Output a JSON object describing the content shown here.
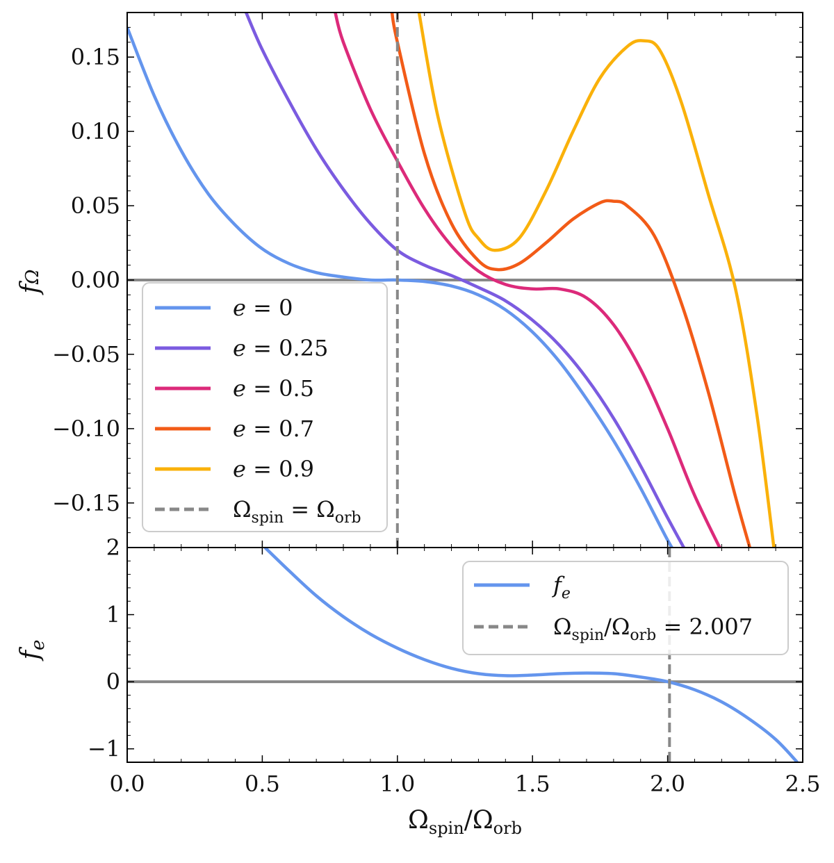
{
  "chart_data": [
    {
      "type": "line",
      "panel": "top",
      "ylabel": "f_Ω",
      "xlim": [
        0,
        2.5
      ],
      "ylim": [
        -0.18,
        0.18
      ],
      "yticks": [
        -0.15,
        -0.1,
        -0.05,
        0.0,
        0.05,
        0.1,
        0.15
      ],
      "ytick_labels": [
        "−0.15",
        "−0.10",
        "−0.05",
        "0.00",
        "0.05",
        "0.10",
        "0.15"
      ],
      "hline": 0,
      "vline": {
        "x": 1.0,
        "label": "Ω_spin = Ω_orb",
        "label_main": "Ω",
        "label_sub": "spin",
        "label_eq": " = Ω",
        "label_sub2": "orb",
        "color": "#888888"
      },
      "legend_position": "lower-left",
      "series": [
        {
          "name": "e = 0",
          "label": "e = 0",
          "label_var": "e",
          "label_val": " = 0",
          "color": "#6495ED",
          "x": [
            0,
            0.1,
            0.2,
            0.3,
            0.4,
            0.5,
            0.6,
            0.7,
            0.8,
            0.9,
            1.0,
            1.1,
            1.2,
            1.3,
            1.4,
            1.5,
            1.6,
            1.7,
            1.8,
            1.9,
            2.0,
            2.05
          ],
          "y": [
            0.17,
            0.124,
            0.087,
            0.058,
            0.037,
            0.021,
            0.011,
            0.005,
            0.002,
            0.0,
            0.0,
            -0.001,
            -0.004,
            -0.01,
            -0.02,
            -0.035,
            -0.055,
            -0.08,
            -0.108,
            -0.14,
            -0.175,
            -0.19
          ]
        },
        {
          "name": "e = 0.25",
          "label": "e = 0.25",
          "label_var": "e",
          "label_val": " = 0.25",
          "color": "#7B5BE0",
          "x": [
            0.44,
            0.5,
            0.6,
            0.7,
            0.8,
            0.9,
            1.0,
            1.1,
            1.2,
            1.3,
            1.4,
            1.5,
            1.6,
            1.7,
            1.8,
            1.9,
            2.0,
            2.09
          ],
          "y": [
            0.18,
            0.155,
            0.12,
            0.088,
            0.061,
            0.038,
            0.02,
            0.01,
            0.003,
            -0.005,
            -0.014,
            -0.027,
            -0.044,
            -0.066,
            -0.093,
            -0.125,
            -0.16,
            -0.19
          ]
        },
        {
          "name": "e = 0.5",
          "label": "e = 0.5",
          "label_var": "e",
          "label_val": " = 0.5",
          "color": "#DC2A7A",
          "x": [
            0.77,
            0.8,
            0.9,
            1.0,
            1.1,
            1.2,
            1.3,
            1.4,
            1.5,
            1.6,
            1.7,
            1.8,
            1.9,
            2.0,
            2.1,
            2.22
          ],
          "y": [
            0.18,
            0.16,
            0.115,
            0.08,
            0.048,
            0.023,
            0.006,
            -0.003,
            -0.006,
            -0.006,
            -0.012,
            -0.03,
            -0.06,
            -0.1,
            -0.145,
            -0.19
          ]
        },
        {
          "name": "e = 0.7",
          "label": "e = 0.7",
          "label_var": "e",
          "label_val": " = 0.7",
          "color": "#F25B17",
          "x": [
            0.98,
            1.0,
            1.1,
            1.2,
            1.3,
            1.37,
            1.45,
            1.55,
            1.65,
            1.75,
            1.8,
            1.85,
            1.95,
            2.05,
            2.15,
            2.25,
            2.32
          ],
          "y": [
            0.18,
            0.16,
            0.085,
            0.038,
            0.013,
            0.007,
            0.011,
            0.025,
            0.041,
            0.052,
            0.053,
            0.05,
            0.03,
            -0.015,
            -0.075,
            -0.145,
            -0.19
          ]
        },
        {
          "name": "e = 0.9",
          "label": "e = 0.9",
          "label_var": "e",
          "label_val": " = 0.9",
          "color": "#FAB10A",
          "x": [
            1.08,
            1.15,
            1.25,
            1.3,
            1.36,
            1.45,
            1.55,
            1.65,
            1.75,
            1.85,
            1.91,
            1.97,
            2.05,
            2.15,
            2.25,
            2.33,
            2.4
          ],
          "y": [
            0.18,
            0.11,
            0.045,
            0.028,
            0.02,
            0.028,
            0.06,
            0.1,
            0.136,
            0.157,
            0.161,
            0.155,
            0.12,
            0.058,
            -0.005,
            -0.09,
            -0.19
          ]
        }
      ]
    },
    {
      "type": "line",
      "panel": "bottom",
      "ylabel": "f_e",
      "xlabel": "Ω_spin / Ω_orb",
      "xlim": [
        0,
        2.5
      ],
      "ylim": [
        -1.2,
        2.0
      ],
      "xticks": [
        0.0,
        0.5,
        1.0,
        1.5,
        2.0,
        2.5
      ],
      "xtick_labels": [
        "0.0",
        "0.5",
        "1.0",
        "1.5",
        "2.0",
        "2.5"
      ],
      "yticks": [
        -1,
        0,
        1,
        2
      ],
      "ytick_labels": [
        "−1",
        "0",
        "1",
        "2"
      ],
      "hline": 0,
      "vline": {
        "x": 2.007,
        "label": "Ω_spin/Ω_orb = 2.007",
        "label_main": "Ω",
        "label_sub": "spin",
        "label_eq": "/Ω",
        "label_sub2": "orb",
        "label_tail": " = 2.007",
        "color": "#888888"
      },
      "legend_position": "upper-right",
      "series": [
        {
          "name": "f_e",
          "label": "f_e",
          "label_var": "f",
          "label_sub": "e",
          "color": "#6495ED",
          "x": [
            0.51,
            0.6,
            0.7,
            0.8,
            0.9,
            1.0,
            1.1,
            1.2,
            1.3,
            1.4,
            1.5,
            1.6,
            1.7,
            1.8,
            1.9,
            2.0,
            2.1,
            2.2,
            2.3,
            2.4,
            2.48
          ],
          "y": [
            2.0,
            1.65,
            1.28,
            0.97,
            0.71,
            0.5,
            0.33,
            0.2,
            0.12,
            0.09,
            0.1,
            0.12,
            0.13,
            0.12,
            0.07,
            0.0,
            -0.12,
            -0.3,
            -0.55,
            -0.86,
            -1.2
          ]
        }
      ]
    }
  ]
}
